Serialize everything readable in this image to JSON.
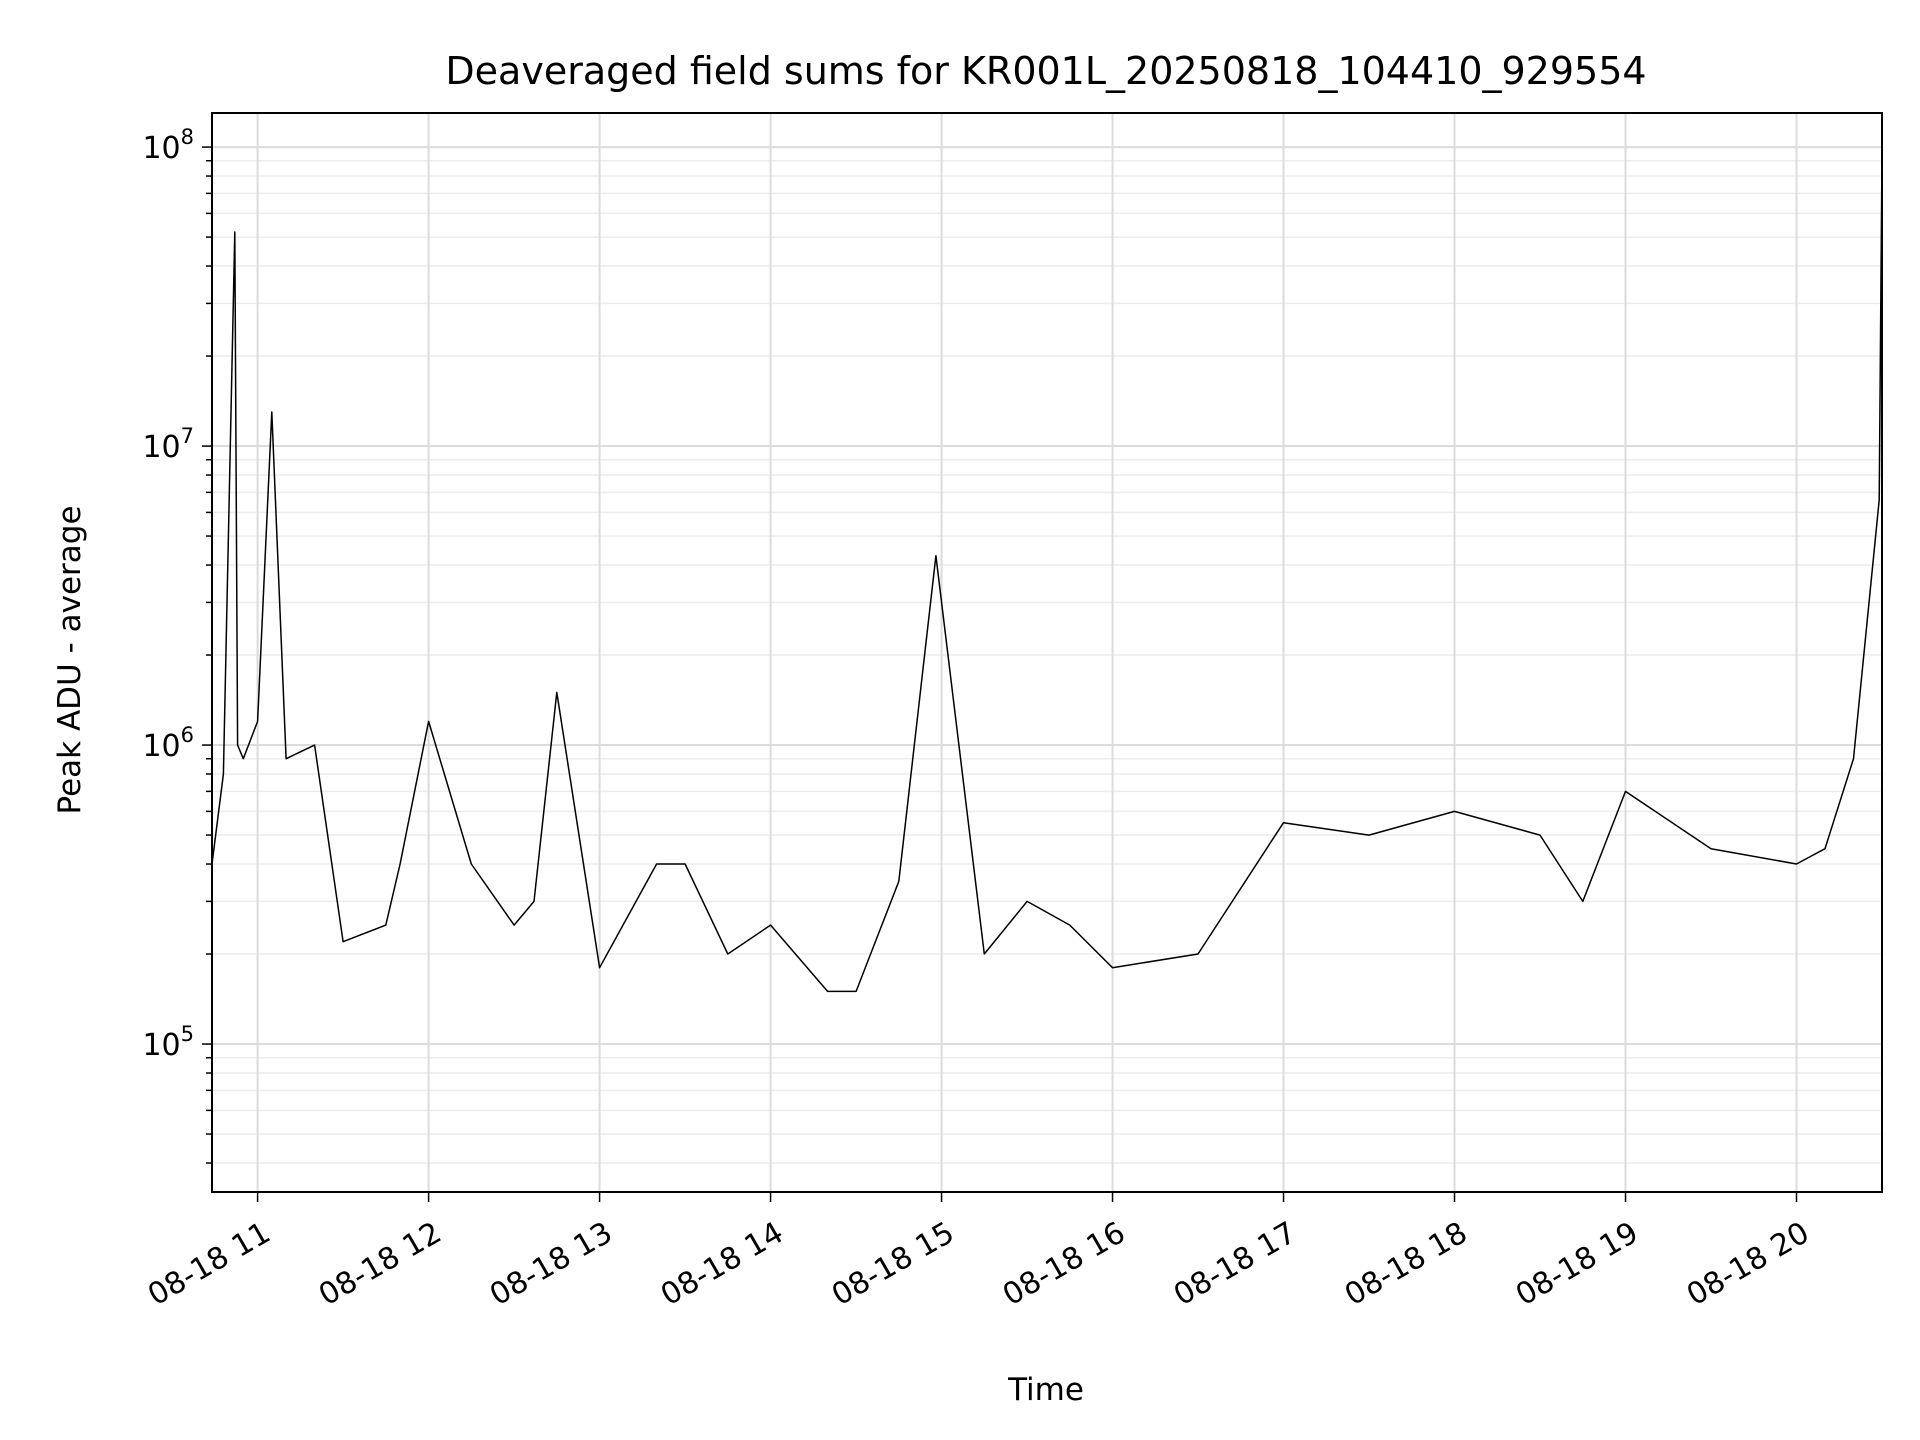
{
  "chart_data": {
    "type": "line",
    "title": "Deaveraged field sums for KR001L_20250818_104410_929554",
    "xlabel": "Time",
    "ylabel": "Peak ADU - average",
    "x_scale": "time",
    "y_scale": "log",
    "xlim": [
      "2025-08-18 10:44",
      "2025-08-18 20:30"
    ],
    "ylim": [
      32000,
      130000000
    ],
    "grid": true,
    "x_ticks": [
      {
        "label": "08-18 11",
        "time": "2025-08-18 11:00"
      },
      {
        "label": "08-18 12",
        "time": "2025-08-18 12:00"
      },
      {
        "label": "08-18 13",
        "time": "2025-08-18 13:00"
      },
      {
        "label": "08-18 14",
        "time": "2025-08-18 14:00"
      },
      {
        "label": "08-18 15",
        "time": "2025-08-18 15:00"
      },
      {
        "label": "08-18 16",
        "time": "2025-08-18 16:00"
      },
      {
        "label": "08-18 17",
        "time": "2025-08-18 17:00"
      },
      {
        "label": "08-18 18",
        "time": "2025-08-18 18:00"
      },
      {
        "label": "08-18 19",
        "time": "2025-08-18 19:00"
      },
      {
        "label": "08-18 20",
        "time": "2025-08-18 20:00"
      }
    ],
    "y_ticks": [
      {
        "base": "10",
        "exp": "5",
        "value": 100000
      },
      {
        "base": "10",
        "exp": "6",
        "value": 1000000
      },
      {
        "base": "10",
        "exp": "7",
        "value": 10000000
      },
      {
        "base": "10",
        "exp": "8",
        "value": 100000000
      }
    ],
    "series": [
      {
        "color": "#000000",
        "x": [
          "2025-08-18 10:44",
          "2025-08-18 10:48",
          "2025-08-18 10:52",
          "2025-08-18 10:53",
          "2025-08-18 10:55",
          "2025-08-18 11:00",
          "2025-08-18 11:05",
          "2025-08-18 11:10",
          "2025-08-18 11:20",
          "2025-08-18 11:30",
          "2025-08-18 11:45",
          "2025-08-18 11:50",
          "2025-08-18 12:00",
          "2025-08-18 12:15",
          "2025-08-18 12:30",
          "2025-08-18 12:37",
          "2025-08-18 12:45",
          "2025-08-18 13:00",
          "2025-08-18 13:20",
          "2025-08-18 13:30",
          "2025-08-18 13:45",
          "2025-08-18 14:00",
          "2025-08-18 14:20",
          "2025-08-18 14:30",
          "2025-08-18 14:45",
          "2025-08-18 14:58",
          "2025-08-18 15:15",
          "2025-08-18 15:30",
          "2025-08-18 15:45",
          "2025-08-18 16:00",
          "2025-08-18 16:30",
          "2025-08-18 17:00",
          "2025-08-18 17:30",
          "2025-08-18 18:00",
          "2025-08-18 18:30",
          "2025-08-18 18:45",
          "2025-08-18 19:00",
          "2025-08-18 19:30",
          "2025-08-18 20:00",
          "2025-08-18 20:10",
          "2025-08-18 20:20",
          "2025-08-18 20:29",
          "2025-08-18 20:30"
        ],
        "y": [
          400000,
          800000,
          52000000,
          1000000,
          900000,
          1200000,
          13000000,
          900000,
          1000000,
          220000,
          250000,
          400000,
          1200000,
          400000,
          250000,
          300000,
          1500000,
          180000,
          400000,
          400000,
          200000,
          250000,
          150000,
          150000,
          350000,
          4300000,
          200000,
          300000,
          250000,
          180000,
          200000,
          550000,
          500000,
          600000,
          500000,
          300000,
          700000,
          450000,
          400000,
          450000,
          900000,
          6600000,
          95000000
        ]
      }
    ]
  }
}
